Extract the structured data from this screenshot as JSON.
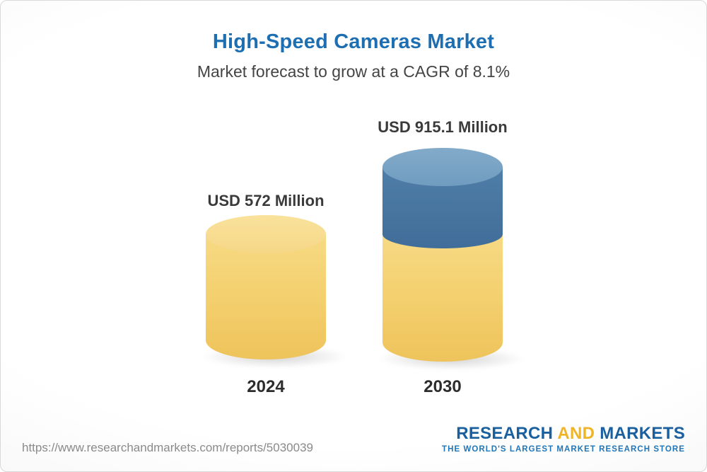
{
  "page": {
    "title": "High-Speed Cameras Market",
    "subtitle": "Market forecast to grow at a CAGR of 8.1%"
  },
  "chart_data": {
    "type": "bar",
    "title": "High-Speed Cameras Market",
    "subtitle": "Market forecast to grow at a CAGR of 8.1%",
    "unit": "USD Million",
    "cagr": "8.1%",
    "categories": [
      "2024",
      "2030"
    ],
    "values": [
      572,
      915.1
    ],
    "ylim": [
      0,
      950
    ],
    "grid": false,
    "legend": "none",
    "bars": [
      {
        "year": "2024",
        "value": 572,
        "label": "USD 572 Million",
        "segments": [
          {
            "name": "market-2024",
            "value": 572,
            "color": "#F3CF6B"
          }
        ]
      },
      {
        "year": "2030",
        "value": 915.1,
        "label": "USD 915.1 Million",
        "segments": [
          {
            "name": "base-2024-level",
            "value": 572,
            "color": "#F3CF6B"
          },
          {
            "name": "forecast-growth",
            "value": 343.1,
            "color": "#46749F"
          }
        ]
      }
    ],
    "colors": {
      "base_yellow": "#F3CF6B",
      "growth_blue": "#46749F",
      "title_blue": "#1E6FB2"
    }
  },
  "footer": {
    "url": "https://www.researchandmarkets.com/reports/5030039",
    "logo": {
      "research": "RESEARCH",
      "and": "AND",
      "markets": "MARKETS",
      "tagline": "THE WORLD'S LARGEST MARKET RESEARCH STORE",
      "brand_blue": "#1A5F9E",
      "brand_yellow": "#F0B429"
    }
  }
}
